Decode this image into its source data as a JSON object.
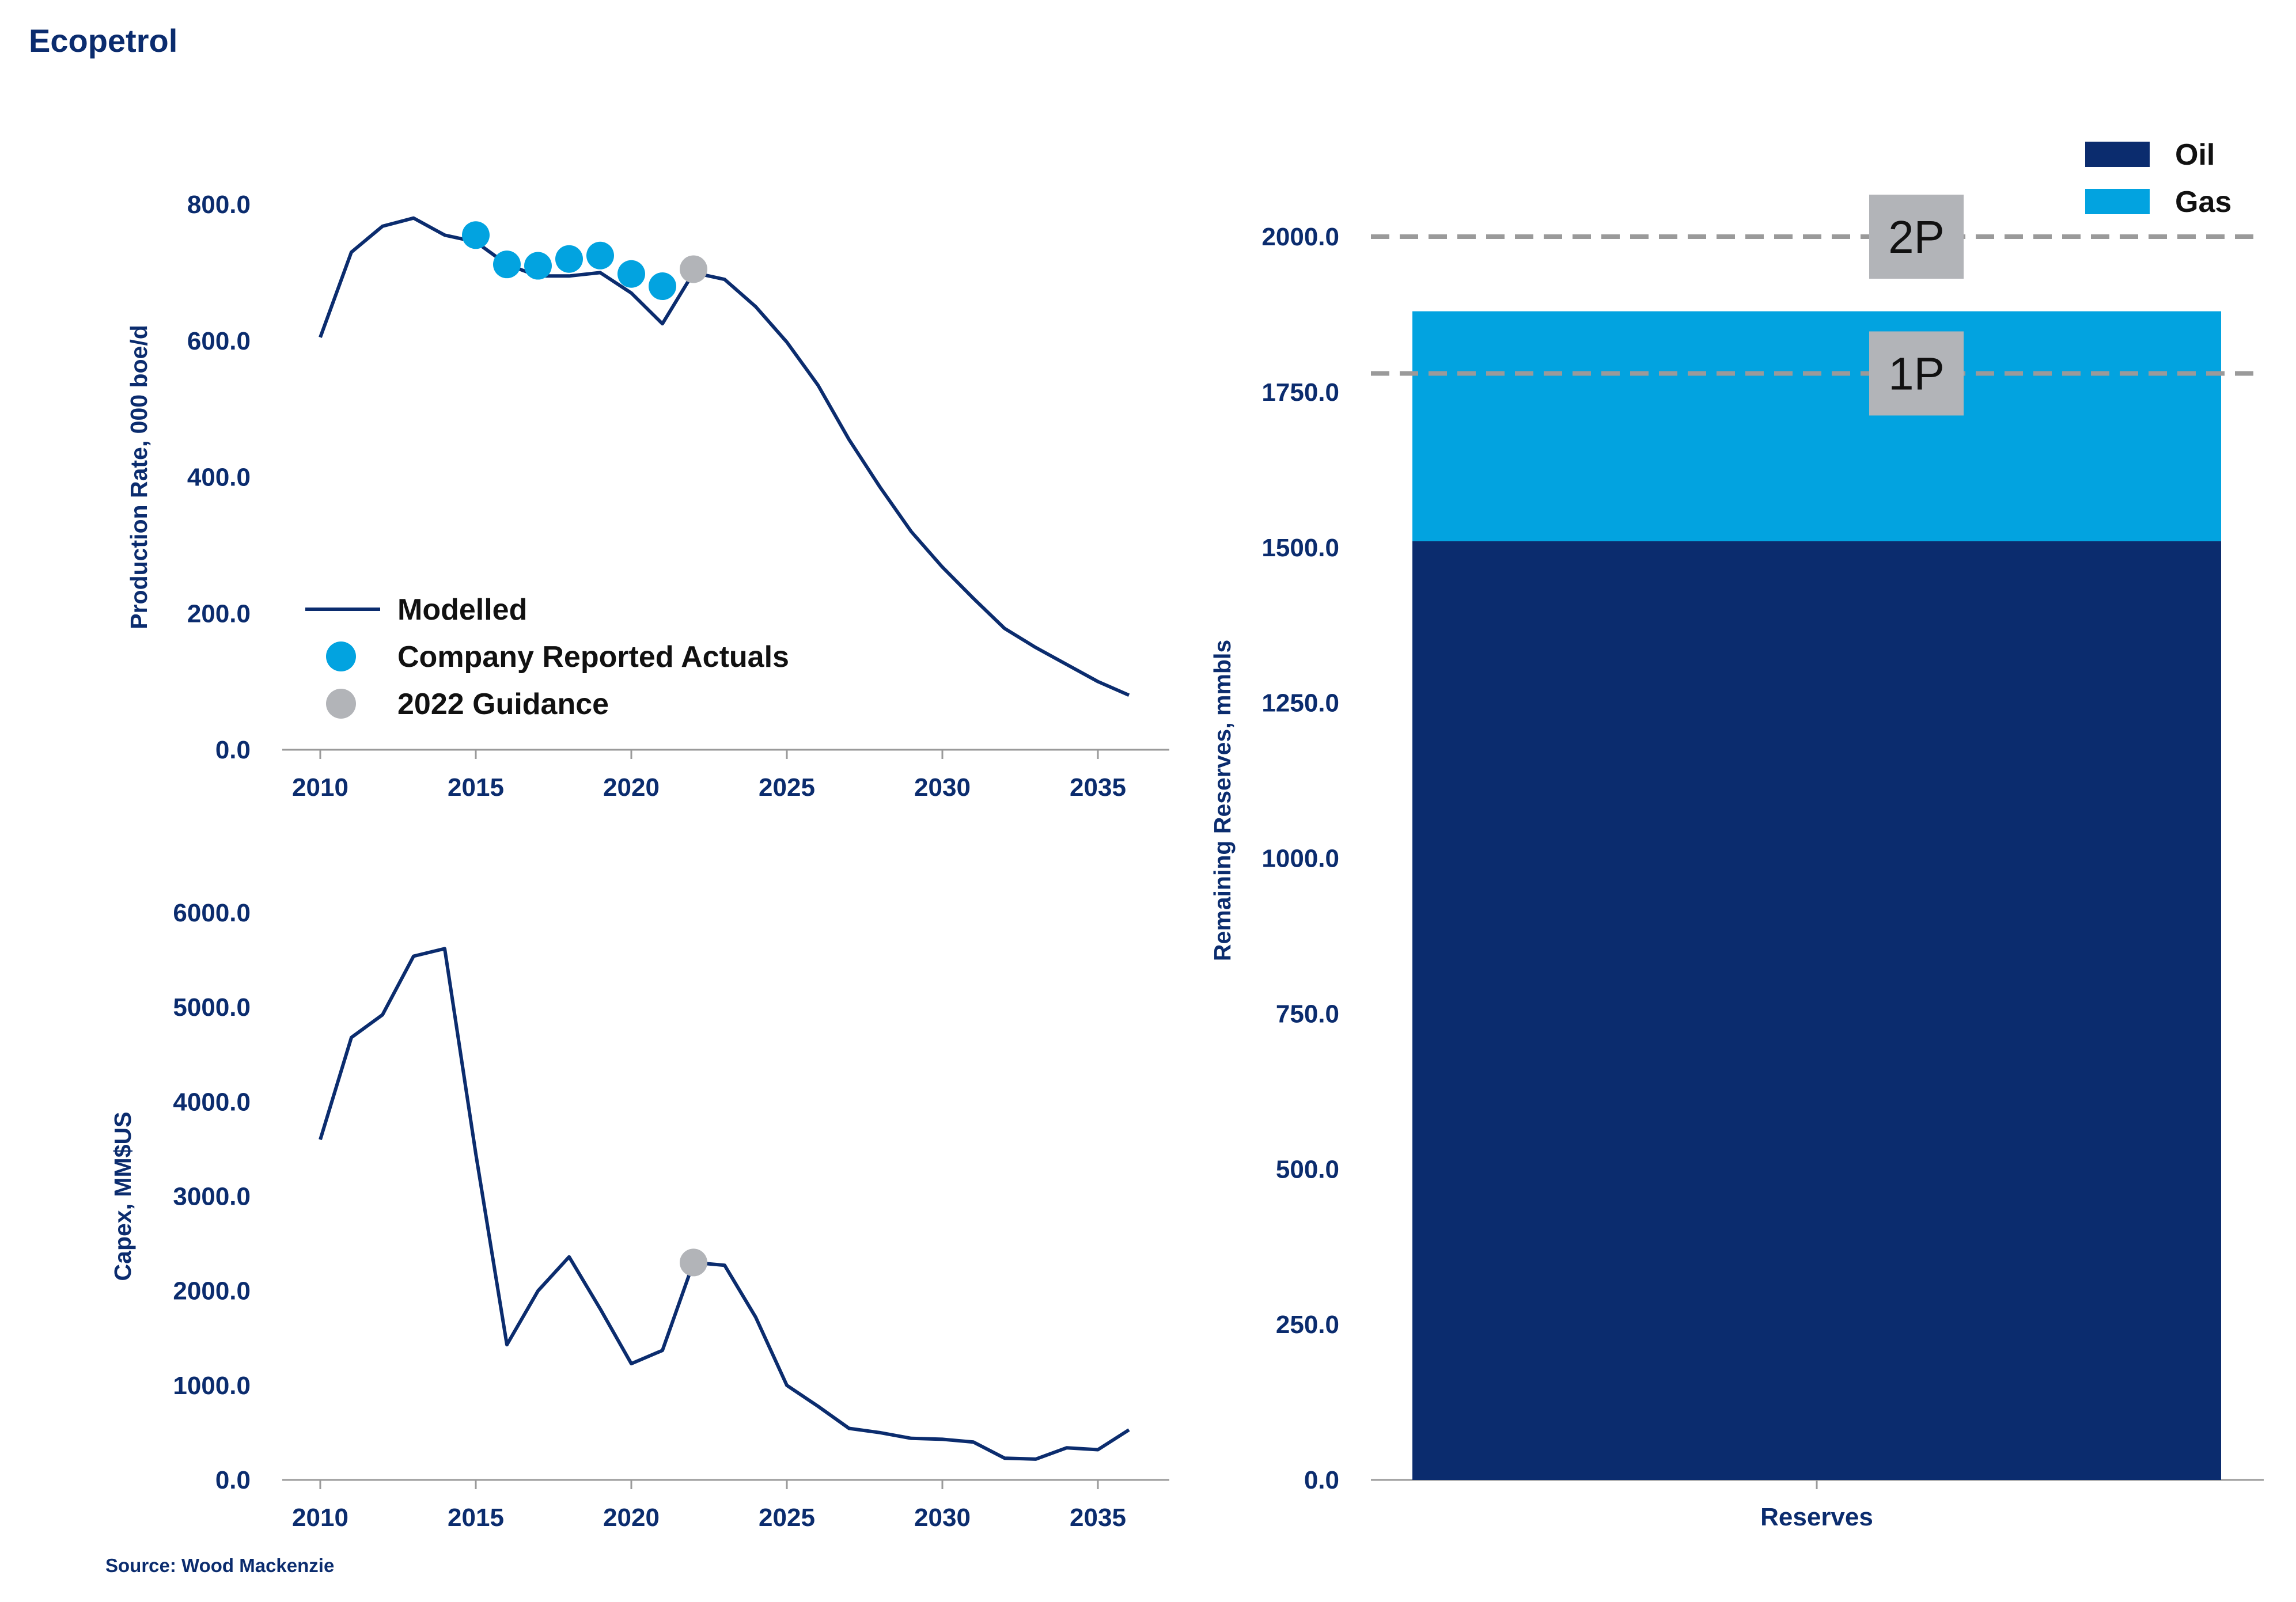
{
  "page": {
    "title": "Ecopetrol",
    "source": "Source: Wood Mackenzie"
  },
  "colors": {
    "navy": "#0b2c6e",
    "cyan": "#02a3e0",
    "grey": "#b2b4b8",
    "axis": "#9a9a9a"
  },
  "chart_data": [
    {
      "type": "line",
      "id": "production",
      "ylabel": "Production Rate, 000 boe/d",
      "xlabel": "",
      "xlim": [
        2010,
        2036
      ],
      "ylim": [
        0,
        800
      ],
      "xticks": [
        2010,
        2015,
        2020,
        2025,
        2030,
        2035
      ],
      "yticks": [
        0,
        200,
        400,
        600,
        800
      ],
      "tick_format": "fixed1",
      "legend": [
        {
          "key": "modelled",
          "label": "Modelled",
          "marker": "line"
        },
        {
          "key": "actuals",
          "label": "Company Reported Actuals",
          "marker": "dot"
        },
        {
          "key": "guidance",
          "label": "2022 Guidance",
          "marker": "dot"
        }
      ],
      "series": [
        {
          "key": "modelled",
          "name": "Modelled",
          "kind": "line",
          "x": [
            2010,
            2011,
            2012,
            2013,
            2014,
            2015,
            2016,
            2017,
            2018,
            2019,
            2020,
            2021,
            2022,
            2023,
            2024,
            2025,
            2026,
            2027,
            2028,
            2029,
            2030,
            2031,
            2032,
            2033,
            2034,
            2035,
            2036
          ],
          "values": [
            605,
            730,
            768,
            780,
            755,
            745,
            712,
            695,
            695,
            700,
            670,
            625,
            700,
            690,
            650,
            598,
            535,
            455,
            385,
            320,
            268,
            222,
            178,
            150,
            125,
            100,
            80
          ]
        },
        {
          "key": "actuals",
          "name": "Company Reported Actuals",
          "kind": "scatter",
          "x": [
            2015,
            2016,
            2017,
            2018,
            2019,
            2020,
            2021
          ],
          "values": [
            755,
            712,
            710,
            720,
            725,
            698,
            680
          ]
        },
        {
          "key": "guidance",
          "name": "2022 Guidance",
          "kind": "scatter",
          "x": [
            2022
          ],
          "values": [
            705
          ]
        }
      ]
    },
    {
      "type": "line",
      "id": "capex",
      "ylabel": "Capex, MM$US",
      "xlabel": "",
      "xlim": [
        2010,
        2036
      ],
      "ylim": [
        0,
        6000
      ],
      "xticks": [
        2010,
        2015,
        2020,
        2025,
        2030,
        2035
      ],
      "yticks": [
        0,
        1000,
        2000,
        3000,
        4000,
        5000,
        6000
      ],
      "tick_format": "fixed1",
      "series": [
        {
          "key": "modelled",
          "name": "Modelled",
          "kind": "line",
          "x": [
            2010,
            2011,
            2012,
            2013,
            2014,
            2015,
            2016,
            2017,
            2018,
            2019,
            2020,
            2021,
            2022,
            2023,
            2024,
            2025,
            2026,
            2027,
            2028,
            2029,
            2030,
            2031,
            2032,
            2033,
            2034,
            2035,
            2036
          ],
          "values": [
            3600,
            4680,
            4920,
            5540,
            5620,
            3450,
            1430,
            2000,
            2360,
            1810,
            1230,
            1370,
            2300,
            2270,
            1720,
            1000,
            780,
            545,
            500,
            440,
            430,
            400,
            230,
            220,
            340,
            320,
            530
          ]
        },
        {
          "key": "guidance",
          "name": "2022 Guidance",
          "kind": "scatter",
          "x": [
            2022
          ],
          "values": [
            2300
          ]
        }
      ]
    },
    {
      "type": "bar",
      "id": "reserves",
      "stacked": true,
      "categories": [
        "Reserves"
      ],
      "ylabel": "Remaining Reserves, mmbls",
      "xlabel": "",
      "ylim": [
        0,
        2100
      ],
      "yticks": [
        0,
        250,
        500,
        750,
        1000,
        1250,
        1500,
        1750,
        2000
      ],
      "tick_format": "fixed1",
      "legend_position": "top-right",
      "series": [
        {
          "key": "oil",
          "name": "Oil",
          "values": [
            1510
          ]
        },
        {
          "key": "gas",
          "name": "Gas",
          "values": [
            370
          ]
        }
      ],
      "reference_lines": [
        {
          "label": "2P",
          "value": 2000
        },
        {
          "label": "1P",
          "value": 1780
        }
      ]
    }
  ]
}
